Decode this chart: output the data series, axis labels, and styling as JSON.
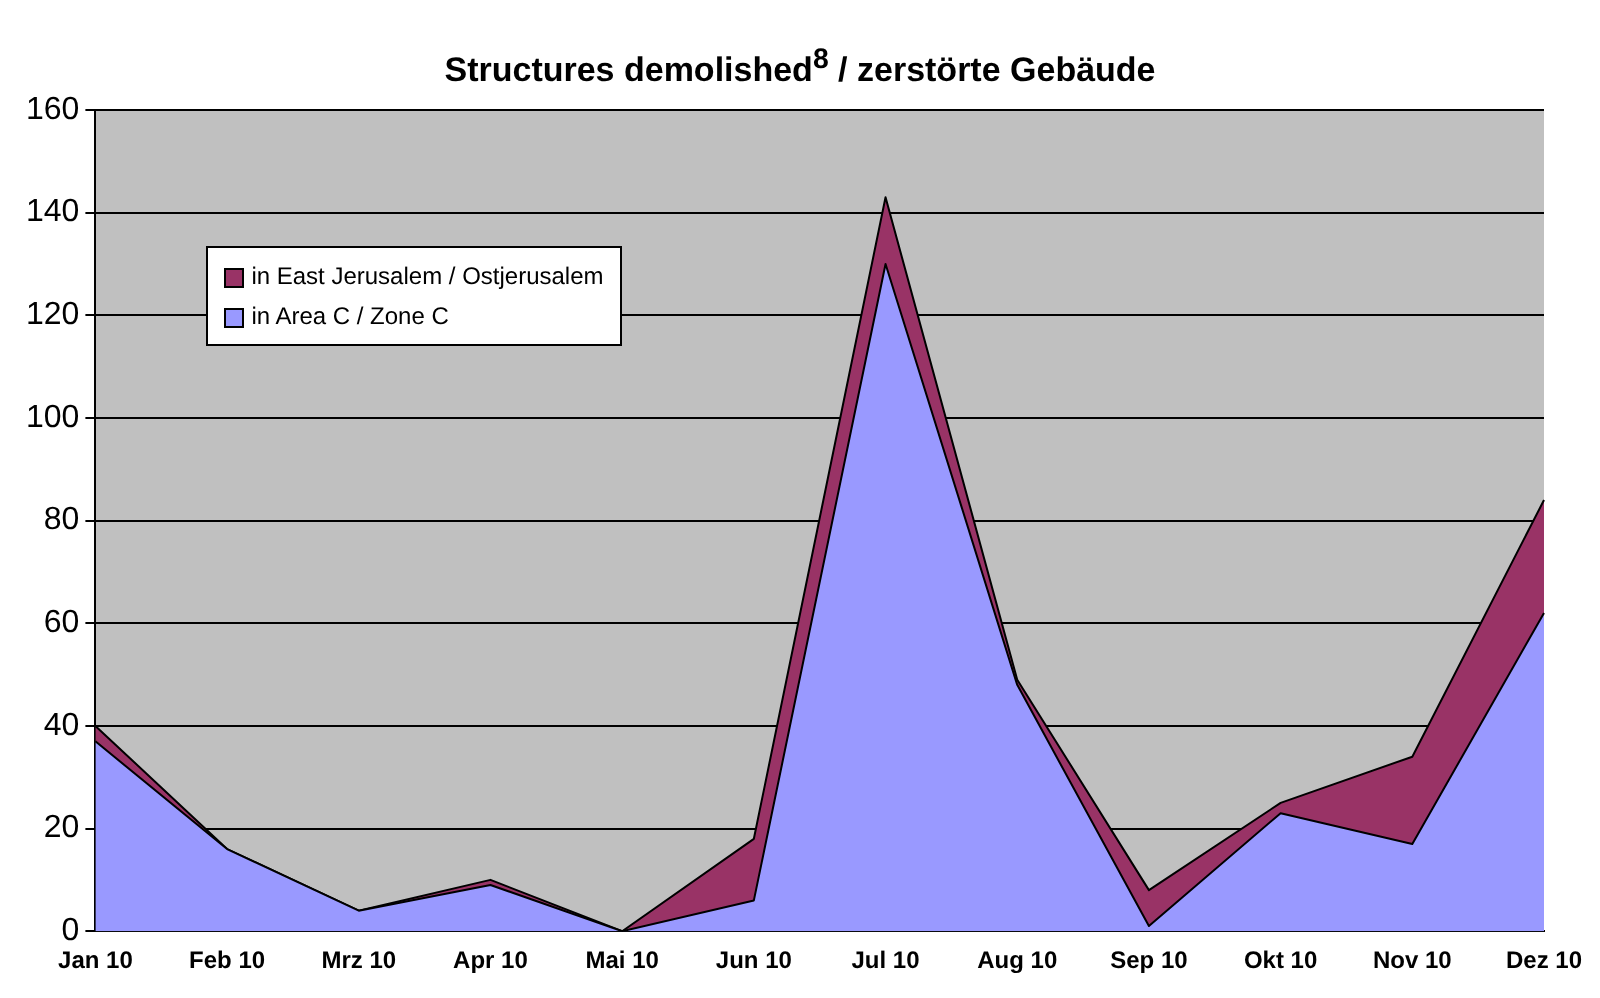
{
  "chart_data": {
    "type": "area",
    "title": "Structures demolished$^{8}$ / zerstörte Gebäude",
    "stacked": true,
    "categories": [
      "Jan 10",
      "Feb 10",
      "Mrz 10",
      "Apr 10",
      "Mai 10",
      "Jun 10",
      "Jul 10",
      "Aug 10",
      "Sep 10",
      "Okt 10",
      "Nov 10",
      "Dez 10"
    ],
    "series": [
      {
        "name": "in Area C / Zone C",
        "color": "#9999ff",
        "values": [
          37,
          16,
          4,
          9,
          0,
          6,
          130,
          48,
          1,
          23,
          17,
          62
        ]
      },
      {
        "name": "in East Jerusalem / Ostjerusalem",
        "color": "#993366",
        "values": [
          3,
          0,
          0,
          1,
          0,
          12,
          13,
          1,
          7,
          2,
          17,
          22
        ]
      }
    ],
    "ylim": [
      0,
      160
    ],
    "yticks": [
      0,
      20,
      40,
      60,
      80,
      100,
      120,
      140,
      160
    ],
    "grid": "y",
    "legend": "top left"
  }
}
